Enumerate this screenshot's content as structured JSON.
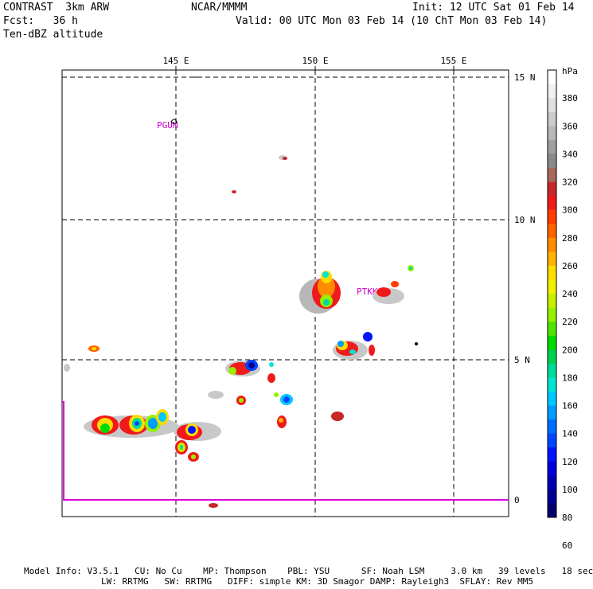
{
  "header": {
    "model": "CONTRAST  3km ARW",
    "org": "NCAR/MMMM",
    "init": "Init: 12 UTC Sat 01 Feb 14",
    "fcst": "Fcst:   36 h",
    "valid": "Valid: 00 UTC Mon 03 Feb 14 (10 ChT Mon 03 Feb 14)",
    "field": "Ten-dBZ altitude"
  },
  "map": {
    "lon_labels": [
      "145 E",
      "150 E",
      "155 E"
    ],
    "lat_labels": [
      "15 N",
      "10 N",
      "5 N",
      "0"
    ],
    "stations": [
      "PGUM",
      "PTKK"
    ],
    "boundary_color": "#dd00dd",
    "grid": "dashed"
  },
  "colorbar": {
    "unit": "hPa",
    "labels": [
      "380",
      "360",
      "340",
      "320",
      "300",
      "280",
      "260",
      "240",
      "220",
      "200",
      "180",
      "160",
      "140",
      "120",
      "100",
      "80",
      "60"
    ],
    "colors": [
      "#ffffff",
      "#f0f0f0",
      "#e0e0e0",
      "#cccccc",
      "#b8b8b8",
      "#a0a0a0",
      "#8a8a8a",
      "#a86a5a",
      "#c82828",
      "#f01a1a",
      "#ff3d00",
      "#ff6400",
      "#ff8c00",
      "#ffb400",
      "#ffdc00",
      "#f0f000",
      "#c8f000",
      "#96f000",
      "#50e600",
      "#00dc00",
      "#00d250",
      "#00dc9a",
      "#00e6d2",
      "#00c8ff",
      "#009cff",
      "#006eff",
      "#0046ff",
      "#0014ff",
      "#0000dc",
      "#0000b4",
      "#000096",
      "#00006e"
    ]
  },
  "footer": {
    "line1": "Model Info: V3.5.1   CU: No Cu    MP: Thompson    PBL: YSU      SF: Noah LSM     3.0 km   39 levels   18 sec",
    "line2": "LW: RRTMG   SW: RRTMG   DIFF: simple KM: 3D Smagor DAMP: Rayleigh3  SFLAY: Rev MM5"
  }
}
